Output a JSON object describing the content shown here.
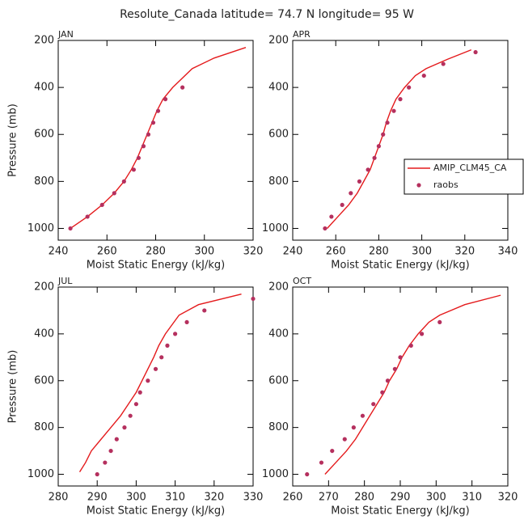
{
  "title": "Resolute_Canada  latitude= 74.7 N longitude= 95 W",
  "chart_data": [
    {
      "type": "line",
      "panel_label": "JAN",
      "xlabel": "Moist Static Energy (kJ/kg)",
      "ylabel": "Pressure (mb)",
      "xlim": [
        240,
        320
      ],
      "xticks": [
        240,
        260,
        280,
        300,
        320
      ],
      "ylim": [
        1050,
        200
      ],
      "yticks": [
        200,
        400,
        600,
        800,
        1000
      ],
      "series": [
        {
          "name": "AMIP_CLM45_CA",
          "color": "#e41a1c",
          "x": [
            245,
            252,
            258,
            263,
            267,
            270,
            272.5,
            274.5,
            276.5,
            278.5,
            280.5,
            283,
            287,
            295,
            304,
            317
          ],
          "values": [
            1000,
            950,
            900,
            850,
            800,
            750,
            700,
            650,
            600,
            550,
            500,
            450,
            400,
            320,
            275,
            230
          ]
        },
        {
          "name": "raobs",
          "color": "#b5305e",
          "marker": "dot",
          "x": [
            245,
            252,
            258,
            263,
            267,
            271,
            273,
            275,
            277,
            279,
            281,
            284,
            291
          ],
          "values": [
            1000,
            950,
            900,
            850,
            800,
            750,
            700,
            650,
            600,
            550,
            500,
            450,
            400
          ]
        }
      ]
    },
    {
      "type": "line",
      "panel_label": "APR",
      "xlabel": "Moist Static Energy (kJ/kg)",
      "legend": "right",
      "xlim": [
        240,
        340
      ],
      "xticks": [
        240,
        260,
        280,
        300,
        320,
        340
      ],
      "ylim": [
        1050,
        200
      ],
      "yticks": [
        200,
        400,
        600,
        800,
        1000
      ],
      "series": [
        {
          "name": "AMIP_CLM45_CA",
          "color": "#e41a1c",
          "x": [
            256,
            261,
            266,
            270,
            273,
            276,
            278,
            280,
            282,
            283.5,
            285.5,
            288,
            292,
            297,
            302,
            312,
            323
          ],
          "values": [
            1000,
            950,
            900,
            850,
            800,
            750,
            700,
            650,
            600,
            550,
            500,
            450,
            400,
            350,
            320,
            280,
            240
          ]
        },
        {
          "name": "raobs",
          "color": "#b5305e",
          "marker": "dot",
          "x": [
            255,
            258,
            263,
            267,
            271,
            275,
            278,
            280,
            282,
            284,
            287,
            290,
            294,
            301,
            310,
            325
          ],
          "values": [
            1000,
            950,
            900,
            850,
            800,
            750,
            700,
            650,
            600,
            550,
            500,
            450,
            400,
            350,
            300,
            250
          ]
        }
      ]
    },
    {
      "type": "line",
      "panel_label": "JUL",
      "xlabel": "Moist Static Energy (kJ/kg)",
      "ylabel": "Pressure (mb)",
      "xlim": [
        280,
        330
      ],
      "xticks": [
        280,
        290,
        300,
        310,
        320,
        330
      ],
      "ylim": [
        1050,
        200
      ],
      "yticks": [
        200,
        400,
        600,
        800,
        1000
      ],
      "series": [
        {
          "name": "AMIP_CLM45_CA",
          "color": "#e41a1c",
          "x": [
            285.5,
            287,
            288.5,
            291,
            293.5,
            296,
            298,
            300,
            301.5,
            303,
            304.5,
            305.8,
            307.5,
            311,
            316,
            327
          ],
          "values": [
            990,
            950,
            900,
            850,
            800,
            750,
            700,
            650,
            600,
            550,
            500,
            450,
            400,
            320,
            275,
            230
          ]
        },
        {
          "name": "raobs",
          "color": "#b5305e",
          "marker": "dot",
          "x": [
            290,
            292,
            293.5,
            295,
            297,
            298.5,
            300,
            301,
            303,
            305,
            306.5,
            308,
            310,
            313,
            317.5,
            330
          ],
          "values": [
            1000,
            950,
            900,
            850,
            800,
            750,
            700,
            650,
            600,
            550,
            500,
            450,
            400,
            350,
            300,
            250
          ]
        }
      ]
    },
    {
      "type": "line",
      "panel_label": "OCT",
      "xlabel": "Moist Static Energy (kJ/kg)",
      "xlim": [
        260,
        320
      ],
      "xticks": [
        260,
        270,
        280,
        290,
        300,
        310,
        320
      ],
      "ylim": [
        1050,
        200
      ],
      "yticks": [
        200,
        400,
        600,
        800,
        1000
      ],
      "series": [
        {
          "name": "AMIP_CLM45_CA",
          "color": "#e41a1c",
          "x": [
            269,
            272,
            275,
            277.5,
            279.5,
            281.5,
            283.5,
            285.5,
            287,
            289,
            290.5,
            292.5,
            295,
            298,
            301,
            308,
            318
          ],
          "values": [
            1000,
            950,
            900,
            850,
            800,
            750,
            700,
            650,
            600,
            550,
            500,
            450,
            400,
            350,
            320,
            275,
            235
          ]
        },
        {
          "name": "raobs",
          "color": "#b5305e",
          "marker": "dot",
          "x": [
            264,
            268,
            271,
            274.5,
            277,
            279.5,
            282.5,
            285,
            286.5,
            288.5,
            290,
            293,
            296,
            301
          ],
          "values": [
            1000,
            950,
            900,
            850,
            800,
            750,
            700,
            650,
            600,
            550,
            500,
            450,
            400,
            350
          ]
        }
      ]
    }
  ]
}
